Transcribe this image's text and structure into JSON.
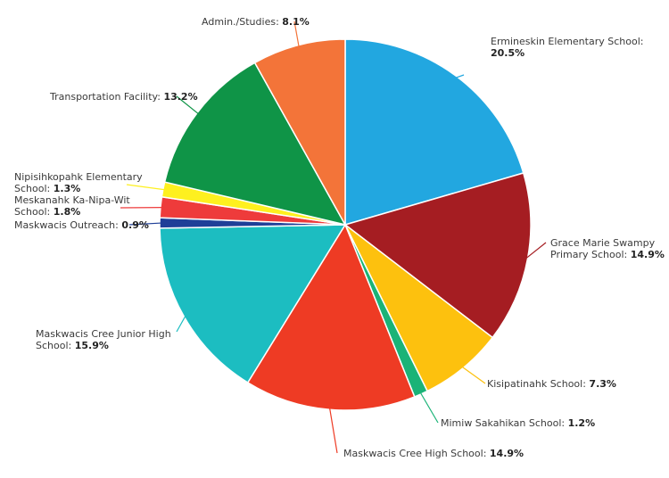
{
  "chart_data": {
    "type": "pie",
    "start_angle_deg": 0,
    "direction": "clockwise",
    "slices": [
      {
        "label": "Ermineskin Elementary School:",
        "value": 20.5,
        "value_label": "20.5%",
        "color": "#22a7e0"
      },
      {
        "label": "Grace Marie Swampy Primary School:",
        "value": 14.9,
        "value_label": "14.9%",
        "color": "#a51d22"
      },
      {
        "label": "Kisipatinahk School:",
        "value": 7.3,
        "value_label": "7.3%",
        "color": "#fdc10e"
      },
      {
        "label": "Mimiw Sakahikan School:",
        "value": 1.2,
        "value_label": "1.2%",
        "color": "#1ab377"
      },
      {
        "label": "Maskwacis Cree High School:",
        "value": 14.9,
        "value_label": "14.9%",
        "color": "#ee3b24"
      },
      {
        "label": "Maskwacis Cree Junior High School:",
        "value": 15.9,
        "value_label": "15.9%",
        "color": "#1cbdc1"
      },
      {
        "label": "Maskwacis Outreach:",
        "value": 0.9,
        "value_label": "0.9%",
        "color": "#1f3f98"
      },
      {
        "label": "Meskanahk Ka-Nipa-Wit School:",
        "value": 1.8,
        "value_label": "1.8%",
        "color": "#ee3b3b"
      },
      {
        "label": "Nipisihkopahk Elementary School:",
        "value": 1.3,
        "value_label": "1.3%",
        "color": "#fef01f"
      },
      {
        "label": "Transportation Facility:",
        "value": 13.2,
        "value_label": "13.2%",
        "color": "#0f9447"
      },
      {
        "label": "Admin./Studies:",
        "value": 8.1,
        "value_label": "8.1%",
        "color": "#f37439"
      }
    ]
  }
}
